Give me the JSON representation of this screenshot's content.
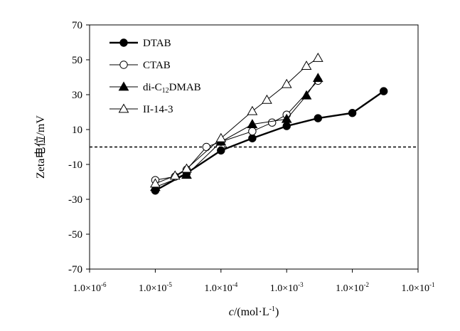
{
  "chart_data": {
    "type": "scatter",
    "xscale": "log",
    "xlim": [
      1e-06,
      0.1
    ],
    "ylim": [
      -70,
      70
    ],
    "x_ticks": [
      {
        "value": 1e-06,
        "mantissa": "1.0×10",
        "exp": "-6"
      },
      {
        "value": 1e-05,
        "mantissa": "1.0×10",
        "exp": "-5"
      },
      {
        "value": 0.0001,
        "mantissa": "1.0×10",
        "exp": "-4"
      },
      {
        "value": 0.001,
        "mantissa": "1.0×10",
        "exp": "-3"
      },
      {
        "value": 0.01,
        "mantissa": "1.0×10",
        "exp": "-2"
      },
      {
        "value": 0.1,
        "mantissa": "1.0×10",
        "exp": "-1"
      }
    ],
    "y_ticks": [
      "70",
      "50",
      "30",
      "10",
      "-10",
      "-30",
      "-50",
      "-70"
    ],
    "xlabel": {
      "italic": "c",
      "main": "/(mol·L",
      "exp": "-1",
      "tail": ")"
    },
    "ylabel": "Zeta电位/mV",
    "reference_line_y": 0,
    "legend_position": "top-left",
    "series": [
      {
        "name": "DTAB",
        "name_sub": "",
        "marker": "filled-circle",
        "line_width": 2.4,
        "x": [
          1e-05,
          3e-05,
          0.0001,
          0.0003,
          0.001,
          0.003,
          0.01,
          0.03
        ],
        "y": [
          -25,
          -15,
          -2,
          5,
          12,
          16.5,
          19.5,
          32
        ]
      },
      {
        "name": "CTAB",
        "name_sub": "",
        "marker": "open-circle",
        "line_width": 1,
        "x": [
          1e-05,
          2e-05,
          3e-05,
          6e-05,
          0.0001,
          0.0003,
          0.0006,
          0.001,
          0.003
        ],
        "y": [
          -19,
          -17,
          -13,
          0,
          3,
          9,
          14,
          18.5,
          38
        ]
      },
      {
        "name": "di-C12DMAB",
        "name_pre": "di-C",
        "name_sub": "12",
        "name_post": "DMAB",
        "marker": "filled-triangle",
        "line_width": 1,
        "x": [
          1e-05,
          3e-05,
          0.0001,
          0.0003,
          0.001,
          0.002,
          0.003
        ],
        "y": [
          -23,
          -16,
          3,
          13,
          16,
          29.5,
          39.5
        ]
      },
      {
        "name": "II-14-3",
        "name_sub": "",
        "marker": "open-triangle",
        "line_width": 1,
        "x": [
          1e-05,
          2e-05,
          3e-05,
          0.0001,
          0.0003,
          0.0005,
          0.001,
          0.002,
          0.003
        ],
        "y": [
          -21,
          -16.5,
          -12.5,
          5,
          20.5,
          27,
          36,
          46.5,
          51
        ]
      }
    ]
  }
}
